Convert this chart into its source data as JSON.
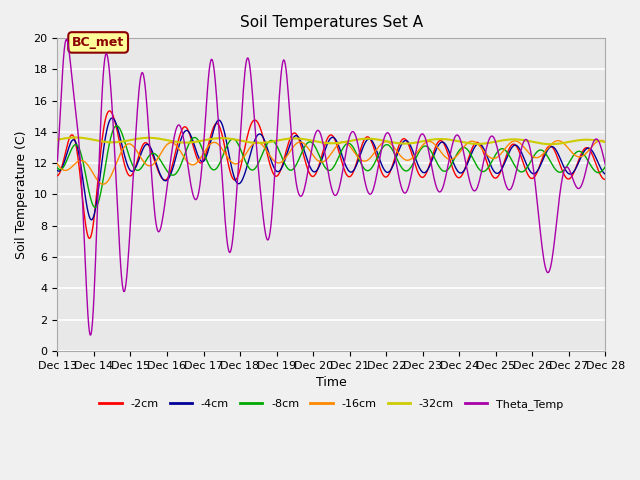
{
  "title": "Soil Temperatures Set A",
  "xlabel": "Time",
  "ylabel": "Soil Temperature (C)",
  "ylim": [
    0,
    20
  ],
  "yticks": [
    0,
    2,
    4,
    6,
    8,
    10,
    12,
    14,
    16,
    18,
    20
  ],
  "x_labels": [
    "Dec 13",
    "Dec 14",
    "Dec 15",
    "Dec 16",
    "Dec 17",
    "Dec 18",
    "Dec 19",
    "Dec 20",
    "Dec 21",
    "Dec 22",
    "Dec 23",
    "Dec 24",
    "Dec 25",
    "Dec 26",
    "Dec 27",
    "Dec 28"
  ],
  "annotation_text": "BC_met",
  "annotation_color": "#8B0000",
  "annotation_bg": "#FFFF99",
  "colors": {
    "-2cm": "#ff0000",
    "-4cm": "#000099",
    "-8cm": "#00aa00",
    "-16cm": "#ff8800",
    "-32cm": "#cccc00",
    "Theta_Temp": "#aa00aa"
  },
  "background_color": "#e8e8e8",
  "grid_color": "#ffffff"
}
